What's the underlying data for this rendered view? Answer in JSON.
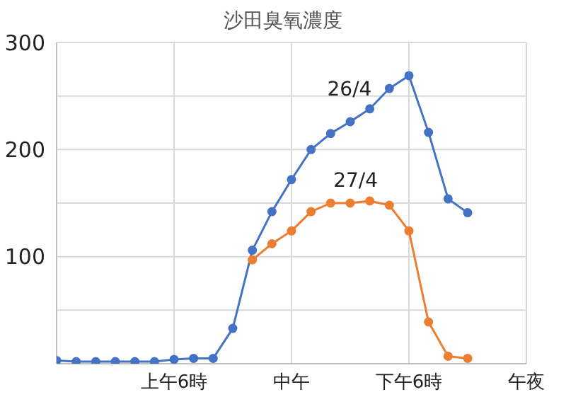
{
  "chart_data": {
    "type": "line",
    "title": "沙田臭氧濃度",
    "categories": [
      null,
      null,
      null,
      null,
      null,
      null,
      "上午6時",
      null,
      null,
      null,
      null,
      null,
      "中午",
      null,
      null,
      null,
      null,
      null,
      "下午6時",
      null,
      null,
      null,
      null,
      null,
      "午夜"
    ],
    "series": [
      {
        "name": "26/4",
        "color": "#4472c4",
        "values": [
          3,
          2,
          2,
          2,
          2,
          2,
          4,
          5,
          5,
          33,
          106,
          142,
          172,
          200,
          215,
          226,
          238,
          257,
          269,
          216,
          154,
          141,
          null,
          null,
          null
        ]
      },
      {
        "name": "27/4",
        "color": "#ed7d31",
        "values": [
          null,
          null,
          null,
          null,
          null,
          null,
          null,
          null,
          null,
          null,
          97,
          112,
          124,
          142,
          150,
          150,
          152,
          148,
          124,
          39,
          7,
          5,
          null,
          null,
          null
        ]
      }
    ],
    "ylim": [
      0,
      300
    ],
    "yticks": [
      {
        "value": 0,
        "label": null
      },
      {
        "value": 50,
        "label": null
      },
      100,
      {
        "value": 150,
        "label": null
      },
      200,
      {
        "value": 250,
        "label": null
      },
      300
    ],
    "grid": true,
    "marker": "circle",
    "line_style": "solid"
  }
}
